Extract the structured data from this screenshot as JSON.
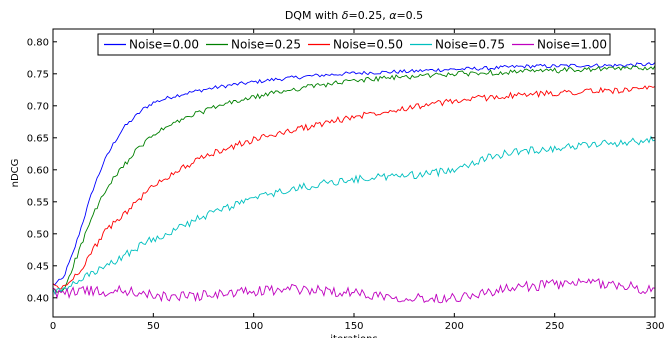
{
  "chart_data": {
    "type": "line",
    "title_prefix": "DQM with ",
    "title_delta_symbol": "δ",
    "title_mid": "=0.25, ",
    "title_alpha_symbol": "α",
    "title_suffix": "=0.5",
    "xlabel": "iterations",
    "ylabel": "nDCG",
    "xlim": [
      0,
      300
    ],
    "ylim": [
      0.37,
      0.82
    ],
    "xticks": [
      0,
      50,
      100,
      150,
      200,
      250,
      300
    ],
    "yticks": [
      0.4,
      0.45,
      0.5,
      0.55,
      0.6,
      0.65,
      0.7,
      0.75,
      0.8
    ],
    "xtick_labels": [
      "0",
      "50",
      "100",
      "150",
      "200",
      "250",
      "300"
    ],
    "ytick_labels": [
      "0.40",
      "0.45",
      "0.50",
      "0.55",
      "0.60",
      "0.65",
      "0.70",
      "0.75",
      "0.80"
    ],
    "grid": false,
    "legend_position": "top-center",
    "x": [
      0,
      5,
      10,
      15,
      20,
      25,
      30,
      35,
      40,
      45,
      50,
      60,
      70,
      80,
      90,
      100,
      110,
      120,
      130,
      140,
      150,
      160,
      170,
      180,
      190,
      200,
      210,
      220,
      230,
      240,
      250,
      260,
      270,
      280,
      290,
      300
    ],
    "series": [
      {
        "name": "Noise=0.00",
        "color": "#0000ff",
        "values": [
          0.42,
          0.43,
          0.47,
          0.52,
          0.57,
          0.61,
          0.64,
          0.665,
          0.68,
          0.695,
          0.705,
          0.715,
          0.722,
          0.728,
          0.733,
          0.737,
          0.741,
          0.744,
          0.747,
          0.749,
          0.751,
          0.752,
          0.753,
          0.754,
          0.756,
          0.757,
          0.758,
          0.759,
          0.761,
          0.762,
          0.762,
          0.763,
          0.763,
          0.763,
          0.764,
          0.765
        ]
      },
      {
        "name": "Noise=0.25",
        "color": "#008000",
        "values": [
          0.41,
          0.41,
          0.45,
          0.49,
          0.53,
          0.56,
          0.585,
          0.605,
          0.625,
          0.64,
          0.655,
          0.672,
          0.686,
          0.697,
          0.706,
          0.713,
          0.72,
          0.726,
          0.731,
          0.735,
          0.739,
          0.742,
          0.744,
          0.746,
          0.748,
          0.75,
          0.751,
          0.752,
          0.753,
          0.754,
          0.755,
          0.756,
          0.757,
          0.758,
          0.759,
          0.76
        ]
      },
      {
        "name": "Noise=0.50",
        "color": "#ff0000",
        "values": [
          0.42,
          0.415,
          0.43,
          0.45,
          0.475,
          0.5,
          0.515,
          0.53,
          0.545,
          0.56,
          0.575,
          0.595,
          0.612,
          0.626,
          0.637,
          0.647,
          0.655,
          0.662,
          0.669,
          0.676,
          0.683,
          0.689,
          0.694,
          0.699,
          0.703,
          0.707,
          0.711,
          0.714,
          0.716,
          0.718,
          0.72,
          0.722,
          0.723,
          0.724,
          0.725,
          0.727
        ]
      },
      {
        "name": "Noise=0.75",
        "color": "#00bfbf",
        "values": [
          0.41,
          0.41,
          0.42,
          0.43,
          0.44,
          0.445,
          0.455,
          0.465,
          0.475,
          0.485,
          0.492,
          0.505,
          0.52,
          0.533,
          0.545,
          0.555,
          0.563,
          0.57,
          0.576,
          0.581,
          0.585,
          0.588,
          0.59,
          0.592,
          0.595,
          0.602,
          0.612,
          0.622,
          0.628,
          0.631,
          0.634,
          0.637,
          0.64,
          0.642,
          0.644,
          0.647
        ]
      },
      {
        "name": "Noise=1.00",
        "color": "#bf00bf",
        "values": [
          0.41,
          0.405,
          0.41,
          0.413,
          0.41,
          0.408,
          0.41,
          0.412,
          0.409,
          0.406,
          0.403,
          0.402,
          0.403,
          0.405,
          0.407,
          0.41,
          0.412,
          0.413,
          0.412,
          0.41,
          0.408,
          0.405,
          0.402,
          0.4,
          0.399,
          0.401,
          0.405,
          0.41,
          0.415,
          0.419,
          0.421,
          0.422,
          0.423,
          0.421,
          0.416,
          0.41
        ]
      }
    ]
  }
}
